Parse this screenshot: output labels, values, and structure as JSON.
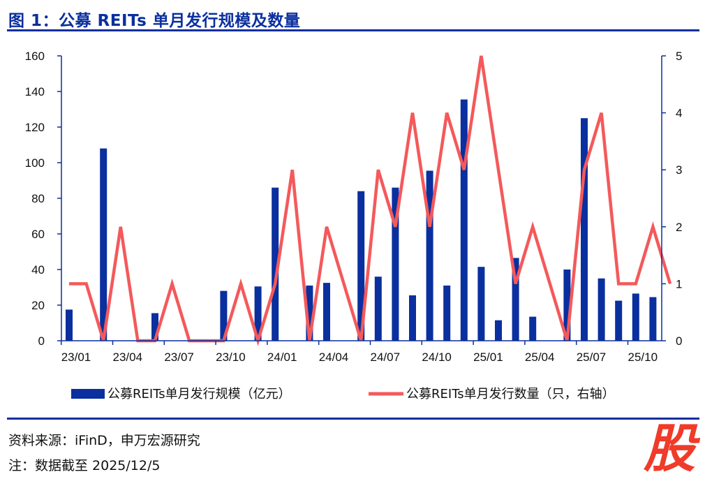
{
  "title": "图 1：公募 REITs 单月发行规模及数量",
  "footer": {
    "source": "资料来源：iFinD，申万宏源研究",
    "note": "注：数据截至 2025/12/5"
  },
  "stamp": "股",
  "colors": {
    "bar": "#0a2f9e",
    "line": "#f4595b",
    "axis": "#0a2f9e",
    "rule": "#0a2f9e"
  },
  "chart_data": {
    "type": "bar",
    "categories": [
      "23/01",
      "23/02",
      "23/03",
      "23/04",
      "23/05",
      "23/06",
      "23/07",
      "23/08",
      "23/09",
      "23/10",
      "23/11",
      "23/12",
      "24/01",
      "24/02",
      "24/03",
      "24/04",
      "24/05",
      "24/06",
      "24/07",
      "24/08",
      "24/09",
      "24/10",
      "24/11",
      "24/12",
      "25/01",
      "25/02",
      "25/03",
      "25/04",
      "25/05",
      "25/06",
      "25/07",
      "25/08",
      "25/09",
      "25/10",
      "25/11",
      "25/12"
    ],
    "tick_labels": [
      "23/01",
      "23/04",
      "23/07",
      "23/10",
      "24/01",
      "24/04",
      "24/07",
      "24/10",
      "25/01",
      "25/04",
      "25/07",
      "25/10"
    ],
    "series": [
      {
        "name": "公募REITs单月发行规模（亿元）",
        "type": "bar",
        "axis": "left",
        "values": [
          17.5,
          0,
          108,
          0,
          0,
          15.5,
          0,
          0,
          0,
          28,
          0,
          30.5,
          86,
          0,
          31,
          32.5,
          0,
          84,
          36,
          86,
          25.5,
          95.5,
          31,
          135.5,
          41.5,
          11.5,
          46.5,
          13.5,
          0,
          40,
          125,
          35,
          22.5,
          26.5,
          24.5,
          0
        ]
      },
      {
        "name": "公募REITs单月发行数量（只，右轴）",
        "type": "line",
        "axis": "right",
        "values": [
          1,
          1,
          0,
          2,
          0,
          0,
          1,
          0,
          0,
          0,
          1,
          0,
          1,
          3,
          0,
          2,
          1,
          0,
          3,
          2,
          4,
          2,
          4,
          3,
          5,
          3,
          1,
          2,
          1,
          0,
          3,
          4,
          1,
          1,
          2,
          1
        ]
      }
    ],
    "ylim_left": [
      0,
      160
    ],
    "yticks_left": [
      0,
      20,
      40,
      60,
      80,
      100,
      120,
      140,
      160
    ],
    "ylim_right": [
      0,
      5
    ],
    "yticks_right": [
      0,
      1,
      2,
      3,
      4,
      5
    ],
    "grid": false,
    "legend": "bottom"
  }
}
